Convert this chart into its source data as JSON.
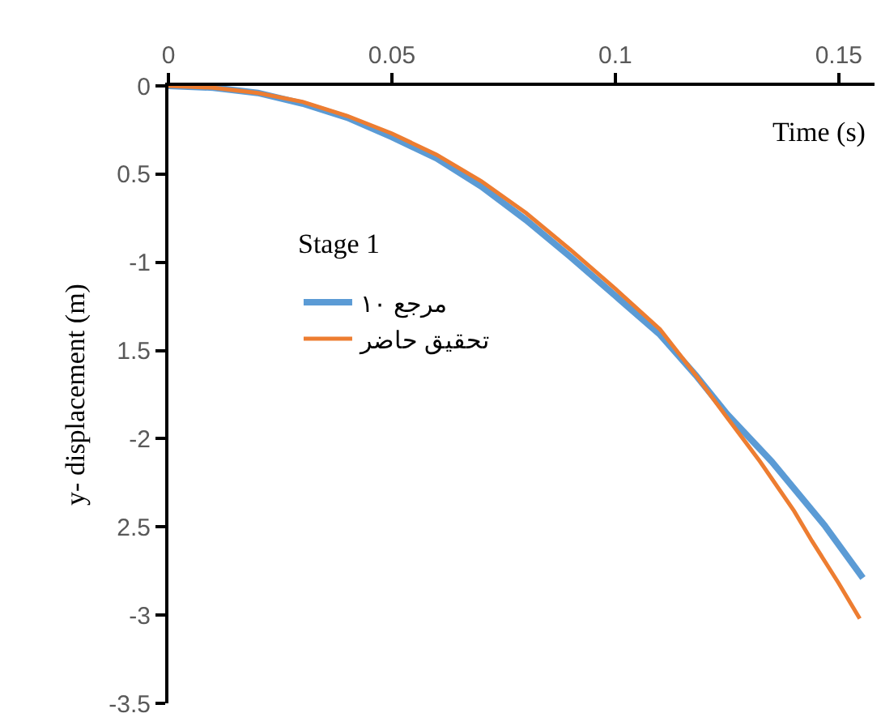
{
  "chart_data": {
    "type": "line",
    "xlabel": "Time (s)",
    "ylabel": "y- displacement (m)",
    "annotations": [
      "Stage 1"
    ],
    "xlim": [
      0,
      0.158
    ],
    "xticks": [
      0,
      0.05,
      0.1,
      0.15
    ],
    "ylim": [
      -3.5,
      0
    ],
    "yticks": [
      0,
      {
        "value": -0.5,
        "label": "0.5"
      },
      -1,
      {
        "value": -1.5,
        "label": "1.5"
      },
      -2,
      {
        "value": -2.5,
        "label": "2.5"
      },
      -3,
      -3.5
    ],
    "grid": false,
    "legend": "left",
    "marker": "none",
    "line_style": "solid",
    "series": [
      {
        "name": "مرجع ١٠",
        "color": "#5b9bd5",
        "x": [
          0,
          0.01,
          0.02,
          0.03,
          0.04,
          0.05,
          0.06,
          0.07,
          0.08,
          0.09,
          0.1,
          0.11,
          0.118,
          0.125,
          0.135,
          0.1468,
          0.1554
        ],
        "values": [
          0,
          -0.01,
          -0.04,
          -0.1,
          -0.18,
          -0.29,
          -0.41,
          -0.57,
          -0.76,
          -0.97,
          -1.19,
          -1.41,
          -1.64,
          -1.86,
          -2.13,
          -2.49,
          -2.79
        ]
      },
      {
        "name": "تحقيق حاضر",
        "color": "#ed7d31",
        "x": [
          0,
          0.01,
          0.02,
          0.03,
          0.04,
          0.05,
          0.06,
          0.07,
          0.08,
          0.09,
          0.1,
          0.11,
          0.118,
          0.125,
          0.1324,
          0.14,
          0.144,
          0.15,
          0.1547
        ],
        "values": [
          0,
          -0.01,
          -0.04,
          -0.09,
          -0.17,
          -0.27,
          -0.39,
          -0.54,
          -0.72,
          -0.93,
          -1.15,
          -1.38,
          -1.64,
          -1.88,
          -2.13,
          -2.41,
          -2.58,
          -2.82,
          -3.02
        ]
      }
    ]
  }
}
